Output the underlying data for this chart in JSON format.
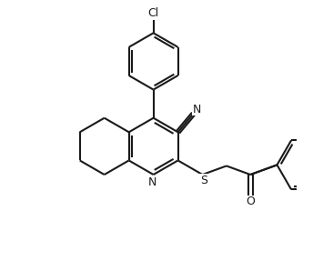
{
  "bg_color": "#ffffff",
  "line_color": "#1a1a1a",
  "line_width": 1.5,
  "fig_width": 3.55,
  "fig_height": 2.98,
  "dpi": 100,
  "xlim": [
    0,
    10
  ],
  "ylim": [
    0,
    10
  ]
}
